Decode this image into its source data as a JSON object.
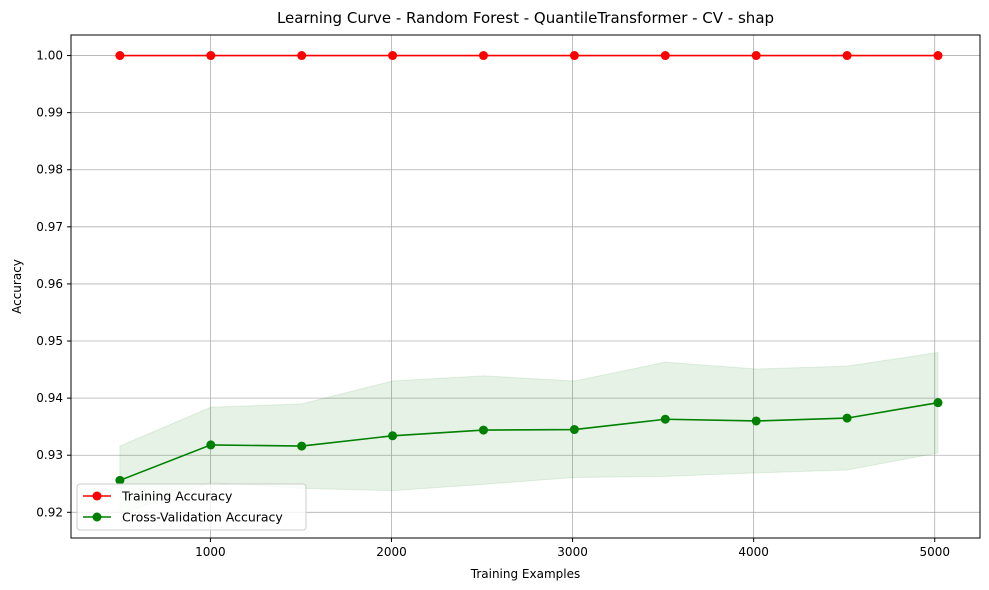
{
  "chart_data": {
    "type": "line",
    "title": "Learning Curve - Random Forest - QuantileTransformer - CV - shap",
    "xlabel": "Training Examples",
    "ylabel": "Accuracy",
    "xlim": [
      230,
      5250
    ],
    "ylim": [
      0.9155,
      1.0036
    ],
    "xticks": [
      1000,
      2000,
      3000,
      4000,
      5000
    ],
    "yticks": [
      0.92,
      0.93,
      0.94,
      0.95,
      0.96,
      0.97,
      0.98,
      0.99,
      1.0
    ],
    "ytick_labels": [
      "0.92",
      "0.93",
      "0.94",
      "0.95",
      "0.96",
      "0.97",
      "0.98",
      "0.99",
      "1.00"
    ],
    "grid": true,
    "legend_position": "lower-left",
    "x": [
      500,
      1002,
      1504,
      2006,
      2508,
      3010,
      3512,
      4014,
      4516,
      5018
    ],
    "series": [
      {
        "name": "Training Accuracy",
        "color": "#ff0000",
        "values": [
          1.0,
          1.0,
          1.0,
          1.0,
          1.0,
          1.0,
          1.0,
          1.0,
          1.0,
          1.0
        ]
      },
      {
        "name": "Cross-Validation Accuracy",
        "color": "#008000",
        "values": [
          0.9256,
          0.9318,
          0.9316,
          0.9334,
          0.9344,
          0.9345,
          0.9363,
          0.936,
          0.9365,
          0.9392
        ],
        "band_upper": [
          0.9316,
          0.9384,
          0.939,
          0.943,
          0.9439,
          0.943,
          0.9463,
          0.9451,
          0.9456,
          0.948
        ],
        "band_lower": [
          0.9196,
          0.9252,
          0.9242,
          0.9238,
          0.9249,
          0.9261,
          0.9263,
          0.9269,
          0.9274,
          0.9304
        ],
        "band_color": "#008000"
      }
    ]
  }
}
